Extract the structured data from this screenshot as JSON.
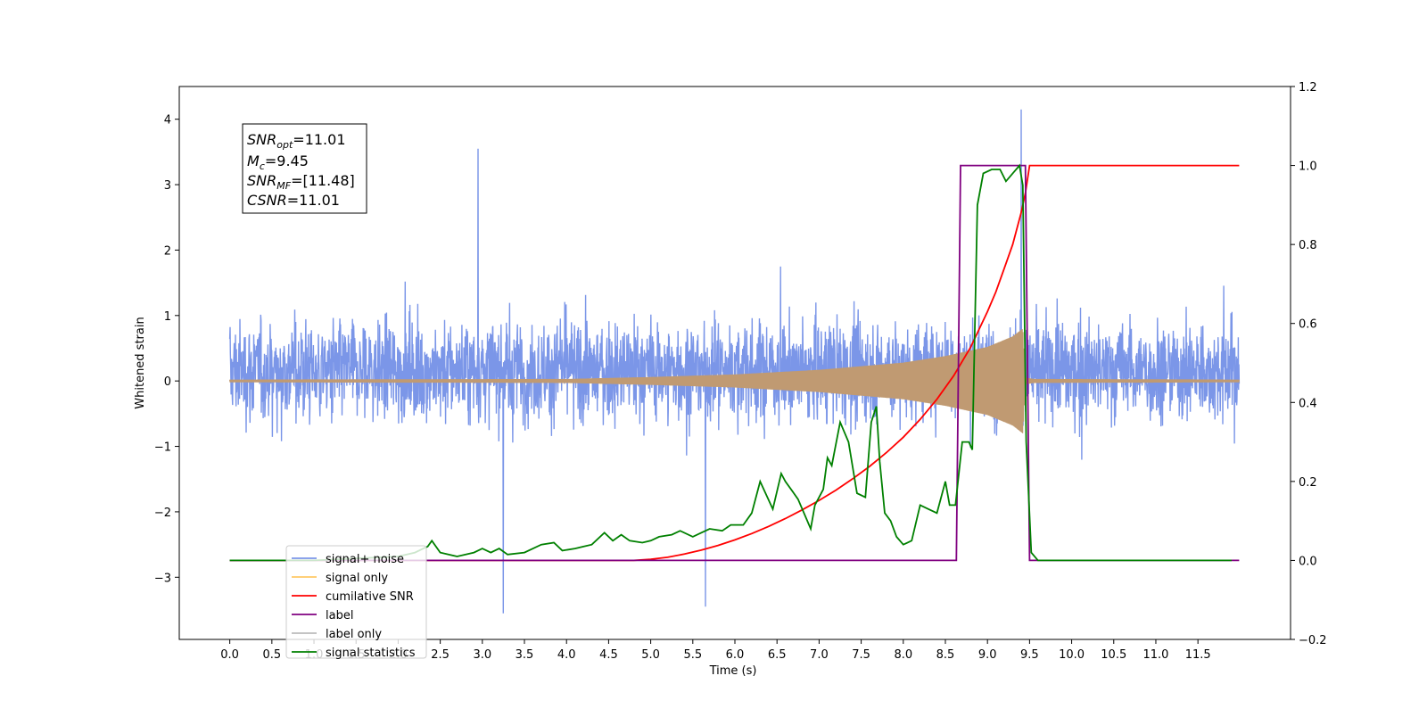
{
  "chart_data": {
    "type": "line",
    "xlabel": "Time (s)",
    "ylabel": "Whitened strain",
    "x_ticks": [
      "0.0",
      "0.5",
      "1.0",
      "1.5",
      "2.0",
      "2.5",
      "3.0",
      "3.5",
      "4.0",
      "4.5",
      "5.0",
      "5.5",
      "6.0",
      "6.5",
      "7.0",
      "7.5",
      "8.0",
      "8.5",
      "9.0",
      "9.5",
      "10.0",
      "10.5",
      "11.0",
      "11.5"
    ],
    "xlim": [
      -0.6,
      12.6
    ],
    "ylim_left": [
      -3.95,
      4.5
    ],
    "yticks_left": [
      "4",
      "3",
      "2",
      "1",
      "0",
      "−1",
      "−2",
      "−3"
    ],
    "ylim_right": [
      -0.2,
      1.2
    ],
    "yticks_right": [
      "1.2",
      "1.0",
      "0.8",
      "0.6",
      "0.4",
      "0.2",
      "0.0",
      "−0.2"
    ],
    "annotation": {
      "snr_opt": {
        "name": "SNR",
        "sub": "opt",
        "value": "=11.01"
      },
      "mc": {
        "name": "M",
        "sub": "c",
        "value": "=9.45"
      },
      "snr_mf": {
        "name": "SNR",
        "sub": "MF",
        "value": "=[11.48]"
      },
      "csnr": {
        "name": "CSNR",
        "sub": "",
        "value": "=11.01"
      }
    },
    "legend": [
      {
        "label": "signal+ noise",
        "color": "#7b96e8"
      },
      {
        "label": "signal only",
        "color": "#ffc966"
      },
      {
        "label": "cumilative SNR",
        "color": "#ff0000"
      },
      {
        "label": "label",
        "color": "#800080"
      },
      {
        "label": "label only",
        "color": "#bbbbbb"
      },
      {
        "label": "signal statistics",
        "color": "#008000"
      }
    ],
    "series": [
      {
        "name": "signal+ noise",
        "axis": "left",
        "color": "#7b96e8",
        "description_values": {
          "x_start": 0.0,
          "x_end": 11.99,
          "typical_range": [
            -1.5,
            2.0
          ],
          "spikes": [
            [
              2.95,
              3.55
            ],
            [
              3.25,
              -3.55
            ],
            [
              5.65,
              -3.45
            ],
            [
              9.4,
              4.15
            ]
          ]
        }
      },
      {
        "name": "signal only",
        "axis": "left",
        "color": "#ffc966",
        "envelope": [
          [
            0.0,
            0.02
          ],
          [
            4.0,
            0.03
          ],
          [
            5.0,
            0.06
          ],
          [
            6.0,
            0.1
          ],
          [
            7.0,
            0.17
          ],
          [
            8.0,
            0.28
          ],
          [
            8.5,
            0.38
          ],
          [
            9.0,
            0.52
          ],
          [
            9.3,
            0.68
          ],
          [
            9.42,
            0.8
          ],
          [
            9.45,
            0.05
          ],
          [
            9.55,
            0.03
          ],
          [
            11.99,
            0.02
          ]
        ]
      },
      {
        "name": "cumilative SNR",
        "axis": "right",
        "color": "#ff0000",
        "x": [
          0.0,
          4.8,
          5.0,
          5.2,
          5.4,
          5.6,
          5.8,
          6.0,
          6.2,
          6.4,
          6.6,
          6.8,
          7.0,
          7.2,
          7.4,
          7.6,
          7.8,
          8.0,
          8.2,
          8.4,
          8.6,
          8.8,
          9.0,
          9.1,
          9.2,
          9.3,
          9.4,
          9.45,
          9.5,
          11.99
        ],
        "values": [
          0.0,
          0.0,
          0.003,
          0.008,
          0.016,
          0.026,
          0.038,
          0.052,
          0.068,
          0.086,
          0.106,
          0.128,
          0.152,
          0.178,
          0.207,
          0.238,
          0.273,
          0.312,
          0.357,
          0.408,
          0.468,
          0.54,
          0.63,
          0.68,
          0.74,
          0.8,
          0.88,
          0.93,
          1.0,
          1.0
        ]
      },
      {
        "name": "label",
        "axis": "right",
        "color": "#800080",
        "x": [
          0.0,
          8.63,
          8.68,
          9.4,
          9.45,
          9.5,
          11.99
        ],
        "values": [
          0.0,
          0.0,
          1.0,
          1.0,
          1.0,
          0.0,
          0.0
        ]
      },
      {
        "name": "signal statistics",
        "axis": "right",
        "color": "#008000",
        "x": [
          0.0,
          0.5,
          1.0,
          1.5,
          2.0,
          2.2,
          2.3,
          2.35,
          2.4,
          2.5,
          2.7,
          2.9,
          3.0,
          3.1,
          3.2,
          3.3,
          3.5,
          3.7,
          3.85,
          3.95,
          4.1,
          4.2,
          4.3,
          4.45,
          4.55,
          4.65,
          4.75,
          4.9,
          5.0,
          5.1,
          5.25,
          5.35,
          5.5,
          5.6,
          5.7,
          5.85,
          5.95,
          6.1,
          6.2,
          6.3,
          6.45,
          6.55,
          6.6,
          6.7,
          6.75,
          6.9,
          6.95,
          7.05,
          7.1,
          7.15,
          7.25,
          7.35,
          7.45,
          7.55,
          7.62,
          7.68,
          7.72,
          7.78,
          7.85,
          7.92,
          8.0,
          8.1,
          8.2,
          8.3,
          8.4,
          8.5,
          8.55,
          8.62,
          8.7,
          8.78,
          8.82,
          8.88,
          8.95,
          9.05,
          9.15,
          9.22,
          9.3,
          9.38,
          9.42,
          9.46,
          9.52,
          9.6,
          11.9
        ],
        "values": [
          0.0,
          0.0,
          0.0,
          0.005,
          0.01,
          0.02,
          0.03,
          0.035,
          0.05,
          0.02,
          0.01,
          0.02,
          0.03,
          0.02,
          0.03,
          0.015,
          0.02,
          0.04,
          0.045,
          0.025,
          0.03,
          0.035,
          0.04,
          0.07,
          0.05,
          0.065,
          0.05,
          0.045,
          0.05,
          0.06,
          0.065,
          0.075,
          0.06,
          0.07,
          0.08,
          0.075,
          0.09,
          0.09,
          0.12,
          0.2,
          0.13,
          0.22,
          0.2,
          0.17,
          0.155,
          0.08,
          0.14,
          0.18,
          0.26,
          0.24,
          0.35,
          0.3,
          0.17,
          0.16,
          0.35,
          0.39,
          0.25,
          0.12,
          0.1,
          0.06,
          0.04,
          0.05,
          0.14,
          0.13,
          0.12,
          0.2,
          0.14,
          0.14,
          0.3,
          0.3,
          0.28,
          0.9,
          0.98,
          0.99,
          0.99,
          0.96,
          0.98,
          1.0,
          0.95,
          0.3,
          0.02,
          0.0,
          0.0
        ]
      }
    ]
  }
}
